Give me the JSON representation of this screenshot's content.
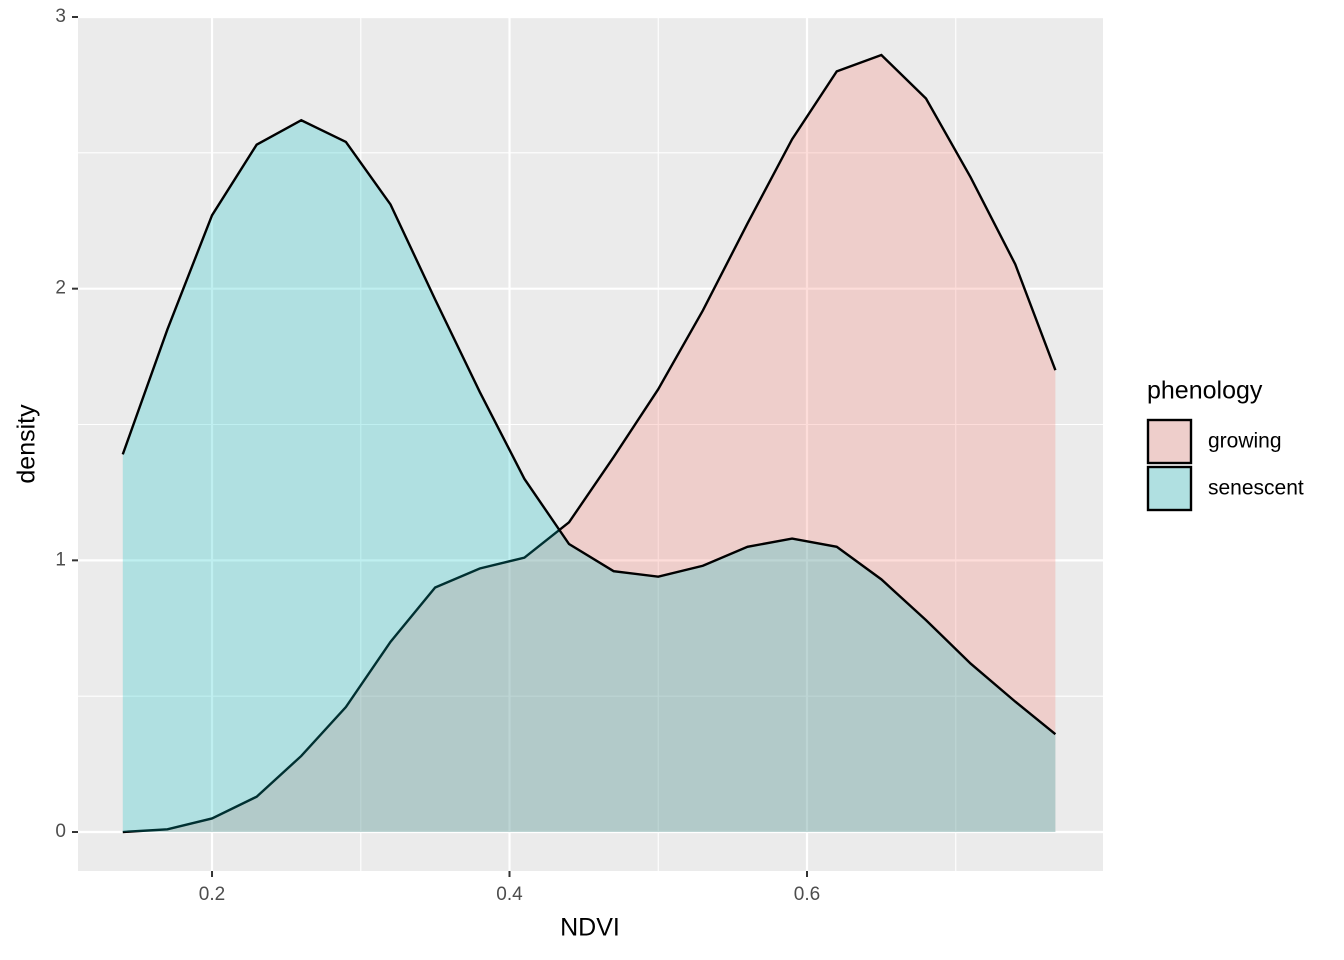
{
  "chart_data": {
    "type": "density",
    "x_label": "NDVI",
    "y_label": "density",
    "x": [
      0.14,
      0.17,
      0.2,
      0.23,
      0.26,
      0.29,
      0.32,
      0.35,
      0.38,
      0.41,
      0.44,
      0.47,
      0.5,
      0.53,
      0.56,
      0.59,
      0.62,
      0.65,
      0.68,
      0.71,
      0.74,
      0.767
    ],
    "series": [
      {
        "name": "growing",
        "color": "#F8766D",
        "values": [
          0.0,
          0.01,
          0.05,
          0.13,
          0.28,
          0.46,
          0.7,
          0.9,
          0.97,
          1.01,
          1.14,
          1.38,
          1.63,
          1.92,
          2.24,
          2.55,
          2.8,
          2.86,
          2.7,
          2.41,
          2.09,
          1.7
        ]
      },
      {
        "name": "senescent",
        "color": "#00BFC4",
        "values": [
          1.39,
          1.85,
          2.27,
          2.53,
          2.62,
          2.54,
          2.31,
          1.96,
          1.62,
          1.3,
          1.06,
          0.96,
          0.94,
          0.98,
          1.05,
          1.08,
          1.05,
          0.93,
          0.78,
          0.62,
          0.48,
          0.36
        ]
      }
    ],
    "legend_title": "phenology",
    "legend": "right",
    "xlim": [
      0.1099,
      0.799
    ],
    "ylim": [
      -0.1435,
      3.0
    ],
    "xticks": [
      0.2,
      0.4,
      0.6
    ],
    "yticks": [
      0,
      1,
      2,
      3
    ],
    "x_minor_breaks": [
      0.3,
      0.5,
      0.7
    ],
    "y_minor_breaks": [
      0.5,
      1.5,
      2.5
    ],
    "grid": true
  }
}
